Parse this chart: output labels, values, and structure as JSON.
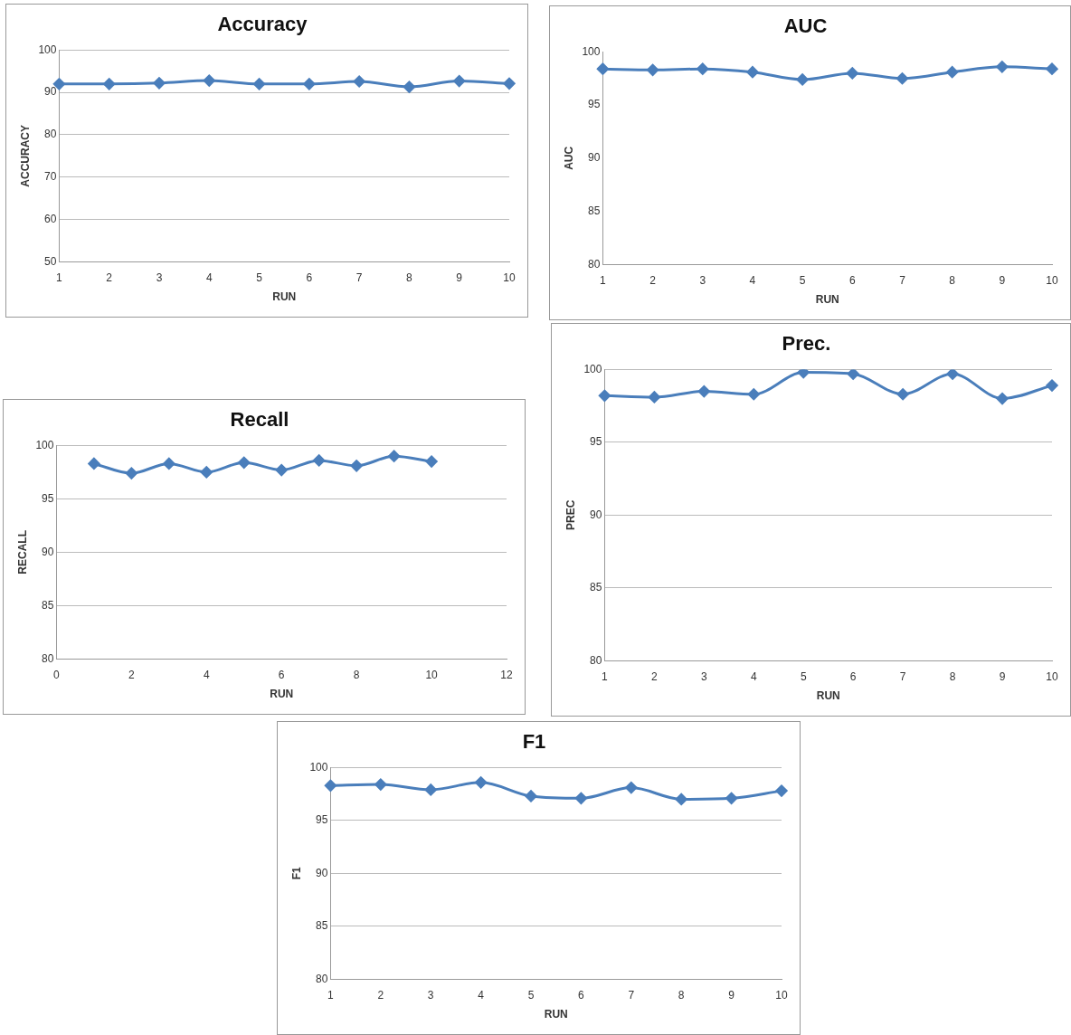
{
  "chart_data": [
    {
      "type": "line",
      "title": "Accuracy",
      "xlabel": "RUN",
      "ylabel": "ACCURACY",
      "categories": [
        "1",
        "2",
        "3",
        "4",
        "5",
        "6",
        "7",
        "8",
        "9",
        "10"
      ],
      "values": [
        92.0,
        92.0,
        92.2,
        92.8,
        92.0,
        92.0,
        92.6,
        91.3,
        92.7,
        92.1
      ],
      "color": "#4a7ebb",
      "ylim": [
        50,
        100
      ],
      "yticks": [
        50,
        60,
        70,
        80,
        90,
        100
      ],
      "grid": "y",
      "marker": "diamond",
      "legend": false
    },
    {
      "type": "line",
      "title": "AUC",
      "xlabel": "RUN",
      "ylabel": "AUC",
      "categories": [
        "1",
        "2",
        "3",
        "4",
        "5",
        "6",
        "7",
        "8",
        "9",
        "10"
      ],
      "values": [
        98.4,
        98.3,
        98.4,
        98.1,
        97.4,
        98.0,
        97.5,
        98.1,
        98.6,
        98.4
      ],
      "color": "#4a7ebb",
      "ylim": [
        80,
        100
      ],
      "yticks": [
        80,
        85,
        90,
        95,
        100
      ],
      "grid": false,
      "marker": "diamond",
      "legend": false
    },
    {
      "type": "line",
      "title": "Recall",
      "xlabel": "RUN",
      "ylabel": "RECALL",
      "x": [
        1,
        2,
        3,
        4,
        5,
        6,
        7,
        8,
        9,
        10
      ],
      "values": [
        98.3,
        97.4,
        98.3,
        97.5,
        98.4,
        97.7,
        98.6,
        98.1,
        99.0,
        98.5
      ],
      "color": "#4a7ebb",
      "xlim": [
        0,
        12
      ],
      "xticks": [
        0,
        2,
        4,
        6,
        8,
        10,
        12
      ],
      "ylim": [
        80,
        100
      ],
      "yticks": [
        80,
        85,
        90,
        95,
        100
      ],
      "grid": "y",
      "marker": "diamond",
      "legend": false
    },
    {
      "type": "line",
      "title": "Prec.",
      "xlabel": "RUN",
      "ylabel": "PREC",
      "categories": [
        "1",
        "2",
        "3",
        "4",
        "5",
        "6",
        "7",
        "8",
        "9",
        "10"
      ],
      "values": [
        98.2,
        98.1,
        98.5,
        98.3,
        99.8,
        99.7,
        98.3,
        99.7,
        98.0,
        98.9
      ],
      "color": "#4a7ebb",
      "ylim": [
        80,
        100
      ],
      "yticks": [
        80,
        85,
        90,
        95,
        100
      ],
      "grid": "y",
      "marker": "diamond",
      "legend": false
    },
    {
      "type": "line",
      "title": "F1",
      "xlabel": "RUN",
      "ylabel": "F1",
      "categories": [
        "1",
        "2",
        "3",
        "4",
        "5",
        "6",
        "7",
        "8",
        "9",
        "10"
      ],
      "values": [
        98.3,
        98.4,
        97.9,
        98.6,
        97.3,
        97.1,
        98.1,
        97.0,
        97.1,
        97.8
      ],
      "color": "#4a7ebb",
      "ylim": [
        80,
        100
      ],
      "yticks": [
        80,
        85,
        90,
        95,
        100
      ],
      "grid": "y",
      "marker": "diamond",
      "legend": false
    }
  ]
}
